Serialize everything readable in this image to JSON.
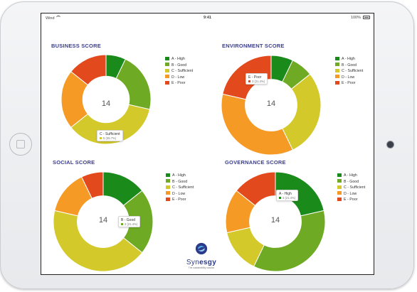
{
  "status_bar": {
    "carrier": "Wind",
    "time": "9:41",
    "battery": "100%"
  },
  "colors": {
    "A - High": "#1a8a1a",
    "B - Good": "#6faa24",
    "C - Sufficient": "#d3c92a",
    "D - Low": "#f59a25",
    "E - Poor": "#e24a1d"
  },
  "legend": [
    "A - High",
    "B - Good",
    "C - Sufficient",
    "D - Low",
    "E - Poor"
  ],
  "panels": [
    {
      "title": "BUSINESS SCORE",
      "center": "14",
      "tooltip": {
        "label": "C - Sufficient",
        "value": "5 (35.7%)"
      }
    },
    {
      "title": "ENVIRONMENT SCORE",
      "center": "14",
      "tooltip": {
        "label": "E - Poor",
        "value": "3 (21.4%)"
      }
    },
    {
      "title": "SOCIAL SCORE",
      "center": "14",
      "tooltip": {
        "label": "B - Good",
        "value": "3 (21.4%)"
      }
    },
    {
      "title": "GOVERNANCE SCORE",
      "center": "14",
      "tooltip": {
        "label": "A - High",
        "value": "3 (21.4%)"
      }
    }
  ],
  "chart_data": [
    {
      "type": "pie",
      "title": "BUSINESS SCORE",
      "categories": [
        "A - High",
        "B - Good",
        "C - Sufficient",
        "D - Low",
        "E - Poor"
      ],
      "values": [
        1,
        3,
        5,
        3,
        2
      ]
    },
    {
      "type": "pie",
      "title": "ENVIRONMENT SCORE",
      "categories": [
        "A - High",
        "B - Good",
        "C - Sufficient",
        "D - Low",
        "E - Poor"
      ],
      "values": [
        1,
        1,
        4,
        5,
        3
      ]
    },
    {
      "type": "pie",
      "title": "SOCIAL SCORE",
      "categories": [
        "A - High",
        "B - Good",
        "C - Sufficient",
        "D - Low",
        "E - Poor"
      ],
      "values": [
        2,
        3,
        6,
        2,
        1
      ]
    },
    {
      "type": "pie",
      "title": "GOVERNANCE SCORE",
      "categories": [
        "A - High",
        "B - Good",
        "C - Sufficient",
        "D - Low",
        "E - Poor"
      ],
      "values": [
        3,
        5,
        2,
        2,
        2
      ]
    }
  ],
  "logo": {
    "name_prefix": "Syn",
    "name_suffix": "esgy",
    "tagline": "The sustainability solution"
  }
}
